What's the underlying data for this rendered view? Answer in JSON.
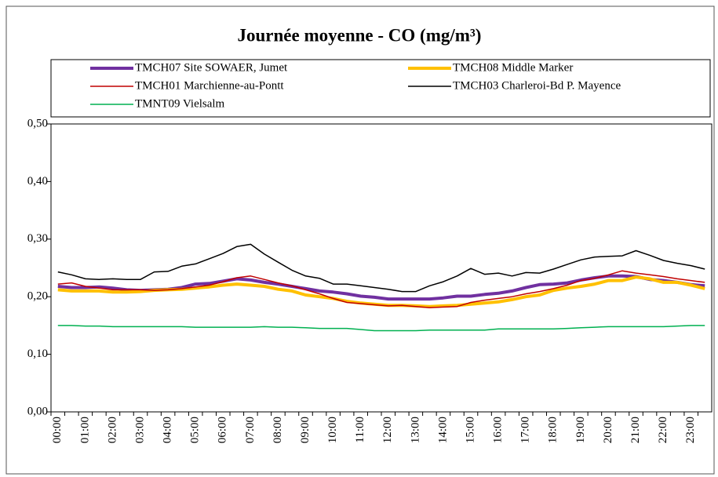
{
  "chart_data": {
    "type": "line",
    "title": "Journée moyenne - CO (mg/m³)",
    "categories": [
      "00:00",
      null,
      "01:00",
      null,
      "02:00",
      null,
      "03:00",
      null,
      "04:00",
      null,
      "05:00",
      null,
      "06:00",
      null,
      "07:00",
      null,
      "08:00",
      null,
      "09:00",
      null,
      "10:00",
      null,
      "11:00",
      null,
      "12:00",
      null,
      "13:00",
      null,
      "14:00",
      null,
      "15:00",
      null,
      "16:00",
      null,
      "17:00",
      null,
      "18:00",
      null,
      "19:00",
      null,
      "20:00",
      null,
      "21:00",
      null,
      "22:00",
      null,
      "23:00",
      null
    ],
    "series": [
      {
        "name": "TMCH07 Site SOWAER, Jumet",
        "color": "#7030a0",
        "width": 4,
        "values": [
          0.218,
          0.216,
          0.216,
          0.217,
          0.215,
          0.212,
          0.211,
          0.212,
          0.213,
          0.216,
          0.222,
          0.223,
          0.227,
          0.231,
          0.229,
          0.225,
          0.222,
          0.218,
          0.214,
          0.21,
          0.208,
          0.205,
          0.201,
          0.199,
          0.196,
          0.196,
          0.196,
          0.196,
          0.198,
          0.201,
          0.201,
          0.204,
          0.206,
          0.21,
          0.216,
          0.221,
          0.222,
          0.224,
          0.229,
          0.233,
          0.236,
          0.236,
          0.235,
          0.23,
          0.228,
          0.225,
          0.221,
          0.219
        ]
      },
      {
        "name": "TMCH08 Middle Marker",
        "color": "#ffc000",
        "width": 4,
        "values": [
          0.212,
          0.21,
          0.21,
          0.21,
          0.208,
          0.208,
          0.209,
          0.211,
          0.212,
          0.213,
          0.215,
          0.217,
          0.22,
          0.222,
          0.22,
          0.218,
          0.213,
          0.21,
          0.203,
          0.2,
          0.197,
          0.192,
          0.189,
          0.187,
          0.185,
          0.185,
          0.184,
          0.183,
          0.184,
          0.185,
          0.187,
          0.189,
          0.191,
          0.195,
          0.2,
          0.203,
          0.211,
          0.215,
          0.218,
          0.222,
          0.228,
          0.228,
          0.234,
          0.231,
          0.225,
          0.225,
          0.22,
          0.214
        ]
      },
      {
        "name": "TMCH01 Marchienne-au-Pontt",
        "color": "#c00000",
        "width": 1.5,
        "values": [
          0.222,
          0.224,
          0.218,
          0.215,
          0.212,
          0.212,
          0.212,
          0.211,
          0.212,
          0.214,
          0.217,
          0.22,
          0.226,
          0.233,
          0.236,
          0.23,
          0.224,
          0.219,
          0.212,
          0.205,
          0.197,
          0.19,
          0.188,
          0.186,
          0.184,
          0.185,
          0.183,
          0.181,
          0.182,
          0.183,
          0.19,
          0.194,
          0.197,
          0.2,
          0.205,
          0.209,
          0.214,
          0.22,
          0.228,
          0.232,
          0.238,
          0.245,
          0.241,
          0.238,
          0.235,
          0.231,
          0.228,
          0.225
        ]
      },
      {
        "name": "TMCH03 Charleroi-Bd P. Mayence",
        "color": "#000000",
        "width": 1.5,
        "values": [
          0.243,
          0.238,
          0.231,
          0.23,
          0.231,
          0.23,
          0.23,
          0.243,
          0.244,
          0.253,
          0.257,
          0.266,
          0.275,
          0.287,
          0.291,
          0.274,
          0.26,
          0.246,
          0.236,
          0.232,
          0.222,
          0.222,
          0.219,
          0.216,
          0.213,
          0.209,
          0.209,
          0.219,
          0.226,
          0.236,
          0.249,
          0.239,
          0.241,
          0.236,
          0.242,
          0.241,
          0.248,
          0.256,
          0.264,
          0.269,
          0.27,
          0.271,
          0.28,
          0.272,
          0.263,
          0.258,
          0.254,
          0.248
        ]
      },
      {
        "name": "TMNT09 Vielsalm",
        "color": "#00b050",
        "width": 1.5,
        "values": [
          0.15,
          0.15,
          0.149,
          0.149,
          0.148,
          0.148,
          0.148,
          0.148,
          0.148,
          0.148,
          0.147,
          0.147,
          0.147,
          0.147,
          0.147,
          0.148,
          0.147,
          0.147,
          0.146,
          0.145,
          0.145,
          0.145,
          0.143,
          0.141,
          0.141,
          0.141,
          0.141,
          0.142,
          0.142,
          0.142,
          0.142,
          0.142,
          0.144,
          0.144,
          0.144,
          0.144,
          0.144,
          0.145,
          0.146,
          0.147,
          0.148,
          0.148,
          0.148,
          0.148,
          0.148,
          0.149,
          0.15,
          0.15
        ]
      }
    ],
    "ylim": [
      0,
      0.5
    ],
    "yticks": [
      {
        "value": 0,
        "label": "0,00"
      },
      {
        "value": 0.1,
        "label": "0,10"
      },
      {
        "value": 0.2,
        "label": "0,20"
      },
      {
        "value": 0.3,
        "label": "0,30"
      },
      {
        "value": 0.4,
        "label": "0,40"
      },
      {
        "value": 0.5,
        "label": "0,50"
      }
    ],
    "grid": false,
    "legend": "top"
  }
}
